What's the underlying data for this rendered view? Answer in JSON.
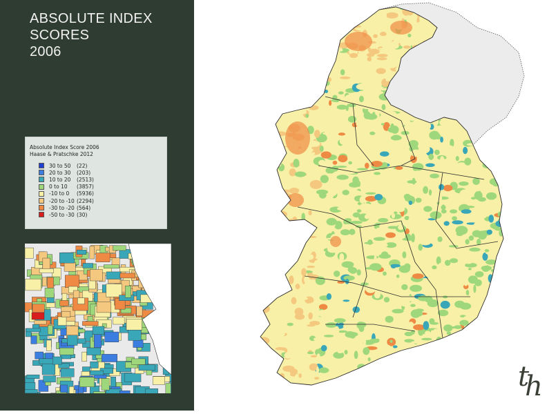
{
  "title": {
    "line1": "ABSOLUTE INDEX",
    "line2": "SCORES",
    "line3": "2006"
  },
  "legend": {
    "title": "Absolute Index Score 2006",
    "source": "Haase & Pratschke 2012",
    "items": [
      {
        "range": "30 to  50",
        "count": "(22)",
        "color": "#1f3fd0"
      },
      {
        "range": "20 to  30",
        "count": "(203)",
        "color": "#3c7de0"
      },
      {
        "range": "10 to  20",
        "count": "(2513)",
        "color": "#3aa7b9"
      },
      {
        "range": " 0 to  10",
        "count": "(3857)",
        "color": "#9fd87c"
      },
      {
        "range": "-10 to   0",
        "count": "(5936)",
        "color": "#f7f0a6"
      },
      {
        "range": "-20 to -10",
        "count": "(2294)",
        "color": "#f4c87e"
      },
      {
        "range": "-30 to -20",
        "count": "(564)",
        "color": "#ef8a44"
      },
      {
        "range": "-50 to -30",
        "count": "(30)",
        "color": "#d91e1e"
      }
    ]
  },
  "colors": {
    "sidebar": "#2e3c31",
    "northern_ireland": "#ececec",
    "sea": "#ffffff",
    "boundary": "#2b2b2b"
  },
  "logo": {
    "part1": "t",
    "part2": "h"
  }
}
